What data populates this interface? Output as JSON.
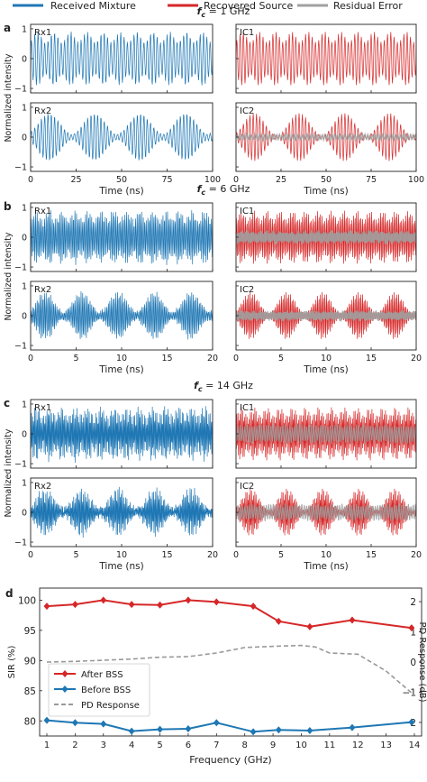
{
  "legend": {
    "items": [
      {
        "label": "Received Mixture",
        "color": "#1f77b4"
      },
      {
        "label": "Recovered Source",
        "color": "#d62728"
      },
      {
        "label": "Residual Error",
        "color": "#a0a0a0"
      }
    ]
  },
  "panels": [
    {
      "letter": "a",
      "fc_label": "f",
      "fc_sub": "c",
      "fc_value": " = 1 GHz",
      "xlim": [
        0,
        100
      ],
      "xticks": [
        0,
        25,
        50,
        75,
        100
      ],
      "xtick_labels": [
        "0",
        "25",
        "50",
        "75",
        "100"
      ],
      "yticks": [
        -1,
        0,
        1
      ],
      "ytick_labels": [
        "−1",
        "0",
        "1"
      ],
      "ylabel": "Normalized intensity",
      "xlabel": "Time (ns)",
      "carrier_cycles": 55,
      "rx1": {
        "label": "Rx1",
        "env_base": 0.55,
        "env_amp": 0.35,
        "env_cycles": 11,
        "noise": 0.02
      },
      "rx2": {
        "label": "Rx2",
        "env_base": 0.1,
        "env_amp": 0.7,
        "env_cycles": 4,
        "noise": 0.02
      },
      "ic1": {
        "label": "IC1",
        "env_base": 0.55,
        "env_amp": 0.35,
        "env_cycles": 11,
        "residual": 0.0
      },
      "ic2": {
        "label": "IC2",
        "env_base": 0.05,
        "env_amp": 0.75,
        "env_cycles": 4,
        "residual": 0.12
      }
    },
    {
      "letter": "b",
      "fc_label": "f",
      "fc_sub": "c",
      "fc_value": " = 6 GHz",
      "xlim": [
        0,
        20
      ],
      "xticks": [
        0,
        5,
        10,
        15,
        20
      ],
      "xtick_labels": [
        "0",
        "5",
        "10",
        "15",
        "20"
      ],
      "yticks": [
        -1,
        0,
        1
      ],
      "ytick_labels": [
        "−1",
        "0",
        "1"
      ],
      "ylabel": "Normalized intensity",
      "xlabel": "Time (ns)",
      "carrier_cycles": 120,
      "rx1": {
        "label": "Rx1",
        "env_base": 0.6,
        "env_amp": 0.3,
        "env_cycles": 14,
        "noise": 0.06
      },
      "rx2": {
        "label": "Rx2",
        "env_base": 0.15,
        "env_amp": 0.65,
        "env_cycles": 5,
        "noise": 0.06
      },
      "ic1": {
        "label": "IC1",
        "env_base": 0.6,
        "env_amp": 0.3,
        "env_cycles": 14,
        "residual": 0.25
      },
      "ic2": {
        "label": "IC2",
        "env_base": 0.1,
        "env_amp": 0.7,
        "env_cycles": 5,
        "residual": 0.2
      }
    },
    {
      "letter": "c",
      "fc_label": "f",
      "fc_sub": "c",
      "fc_value": " = 14 GHz",
      "xlim": [
        0,
        20
      ],
      "xticks": [
        0,
        5,
        10,
        15,
        20
      ],
      "xtick_labels": [
        "0",
        "5",
        "10",
        "15",
        "20"
      ],
      "yticks": [
        -1,
        0,
        1
      ],
      "ytick_labels": [
        "−1",
        "0",
        "1"
      ],
      "ylabel": "Normalized intensity",
      "xlabel": "Time (ns)",
      "carrier_cycles": 280,
      "rx1": {
        "label": "Rx1",
        "env_base": 0.62,
        "env_amp": 0.28,
        "env_cycles": 14,
        "noise": 0.08
      },
      "rx2": {
        "label": "Rx2",
        "env_base": 0.15,
        "env_amp": 0.65,
        "env_cycles": 5,
        "noise": 0.08
      },
      "ic1": {
        "label": "IC1",
        "env_base": 0.62,
        "env_amp": 0.28,
        "env_cycles": 14,
        "residual": 0.35
      },
      "ic2": {
        "label": "IC2",
        "env_base": 0.1,
        "env_amp": 0.7,
        "env_cycles": 5,
        "residual": 0.3
      }
    }
  ],
  "chart_data": {
    "type": "line",
    "letter": "d",
    "xlabel": "Frequency (GHz)",
    "ylabel": "SIR (%)",
    "y2label": "PD Response (dB)",
    "xlim": [
      1,
      14
    ],
    "ylim": [
      77.5,
      102
    ],
    "y2lim": [
      -2.45,
      2.45
    ],
    "xticks": [
      1,
      2,
      3,
      4,
      5,
      6,
      7,
      8,
      9,
      10,
      11,
      12,
      13,
      14
    ],
    "yticks": [
      80,
      85,
      90,
      95,
      100
    ],
    "y2ticks": [
      -2,
      -1,
      0,
      1,
      2
    ],
    "y2tick_labels": [
      "−2",
      "−1",
      "0",
      "1",
      "2"
    ],
    "legend_position": "lower-left",
    "series": [
      {
        "name": "After BSS",
        "axis": "left",
        "color": "#d62728",
        "marker": "diamond",
        "x": [
          1,
          2,
          3,
          4,
          5,
          6,
          7,
          8.3,
          9.2,
          10.3,
          11.8,
          13.9
        ],
        "y": [
          99,
          99.3,
          100,
          99.3,
          99.2,
          100,
          99.7,
          99,
          96.5,
          95.6,
          96.7,
          95.4
        ]
      },
      {
        "name": "Before BSS",
        "axis": "left",
        "color": "#1f77b4",
        "marker": "diamond",
        "x": [
          1,
          2,
          3,
          4,
          5,
          6,
          7,
          8.3,
          9.2,
          10.3,
          11.8,
          13.9
        ],
        "y": [
          80.1,
          79.7,
          79.5,
          78.3,
          78.6,
          78.7,
          79.7,
          78.2,
          78.5,
          78.4,
          78.9,
          79.8
        ]
      },
      {
        "name": "PD Response",
        "axis": "right",
        "color": "#999999",
        "dash": "5,3",
        "x": [
          1,
          2,
          3,
          4,
          5,
          6,
          7,
          8,
          9,
          10,
          10.5,
          11,
          12,
          13,
          14
        ],
        "y": [
          0,
          0.02,
          0.06,
          0.1,
          0.16,
          0.18,
          0.3,
          0.48,
          0.52,
          0.55,
          0.5,
          0.3,
          0.26,
          -0.3,
          -1.1
        ]
      }
    ]
  }
}
